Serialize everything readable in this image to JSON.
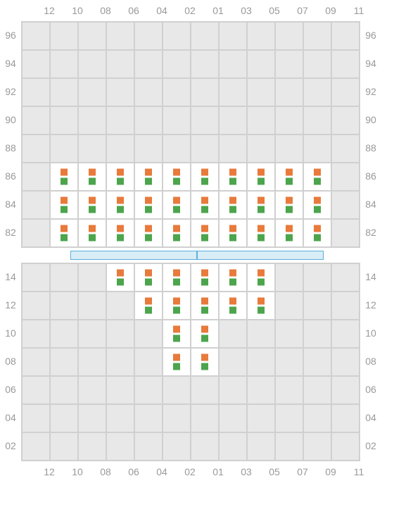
{
  "columns": [
    "12",
    "10",
    "08",
    "06",
    "04",
    "02",
    "01",
    "03",
    "05",
    "07",
    "09",
    "11"
  ],
  "top": {
    "rows": [
      "96",
      "94",
      "92",
      "90",
      "88",
      "86",
      "84",
      "82"
    ],
    "active": {
      "86": [
        1,
        2,
        3,
        4,
        5,
        6,
        7,
        8,
        9,
        10
      ],
      "84": [
        1,
        2,
        3,
        4,
        5,
        6,
        7,
        8,
        9,
        10
      ],
      "82": [
        1,
        2,
        3,
        4,
        5,
        6,
        7,
        8,
        9,
        10
      ]
    }
  },
  "bottom": {
    "rows": [
      "14",
      "12",
      "10",
      "08",
      "06",
      "04",
      "02"
    ],
    "active": {
      "14": [
        3,
        4,
        5,
        6,
        7,
        8
      ],
      "12": [
        4,
        5,
        6,
        7,
        8
      ],
      "10": [
        5,
        6
      ],
      "08": [
        5,
        6
      ]
    }
  },
  "bar": {
    "left_width": 180,
    "right_width": 180
  },
  "colors": {
    "grid_bg": "#e8e8e8",
    "grid_line": "#d0d0d0",
    "cell_active_bg": "#ffffff",
    "label_color": "#999999",
    "marker_top": "#e87a3c",
    "marker_bottom": "#4ca54c",
    "bar_border": "#5bb0de",
    "bar_fill": "#d9edf7"
  }
}
